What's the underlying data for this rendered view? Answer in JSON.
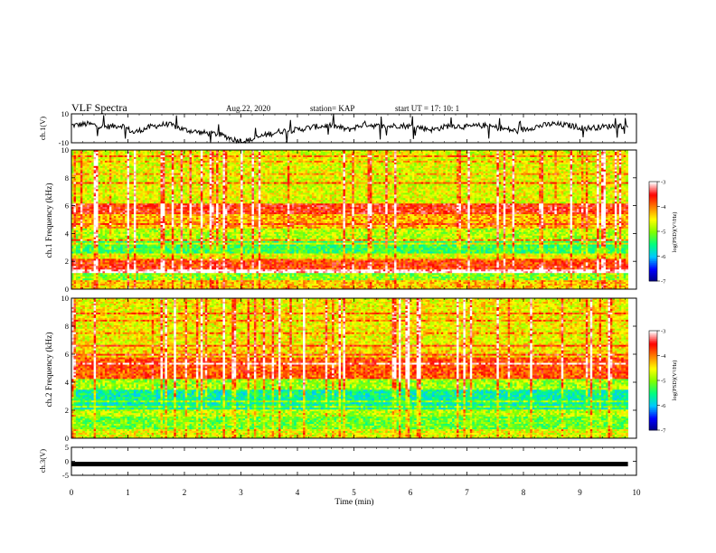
{
  "header": {
    "title": "VLF Spectra",
    "date": "Aug.22, 2020",
    "station": "station= KAP",
    "start": "start  UT =   17: 10: 1"
  },
  "chart_data": [
    {
      "type": "line",
      "panel": "ch1-waveform",
      "ylabel": "ch.1(V)",
      "ylim": [
        -10,
        10
      ],
      "yticks": [
        "10",
        "-10"
      ],
      "x_minutes": [
        0,
        0.3,
        0.6,
        0.9,
        1.1,
        1.4,
        1.7,
        2.0,
        2.3,
        2.6,
        2.9,
        3.1,
        3.4,
        3.7,
        4.0,
        4.3,
        4.6,
        4.9,
        5.2,
        5.5,
        5.8,
        6.1,
        6.4,
        6.7,
        7.0,
        7.3,
        7.6,
        7.9,
        8.2,
        8.5,
        8.8,
        9.1,
        9.4,
        9.7,
        9.85
      ],
      "y_volts": [
        2,
        3,
        1,
        2,
        -3,
        1,
        3,
        -1,
        -3,
        -4,
        -8,
        -9,
        -5,
        -2,
        -1,
        1,
        2,
        -1,
        3,
        1,
        2,
        1,
        -1,
        2,
        1,
        2,
        0,
        -2,
        1,
        3,
        2,
        0,
        1,
        2,
        1
      ]
    },
    {
      "type": "heatmap",
      "panel": "ch1-spectrogram",
      "ylabel": "ch.1 Frequency (kHz)",
      "ylim": [
        0,
        10
      ],
      "yticks": [
        "0",
        "2",
        "4",
        "6",
        "8",
        "10"
      ],
      "colorbar": {
        "label": "log(PSD)(V²/Hz)",
        "range": [
          -7,
          -3
        ],
        "ticks": [
          "-3",
          "-4",
          "-5",
          "-6",
          "-7"
        ]
      },
      "band_levels": [
        {
          "f_khz": [
            0,
            0.6
          ],
          "level": -4.3
        },
        {
          "f_khz": [
            0.6,
            1.2
          ],
          "level": -5.0
        },
        {
          "f_khz": [
            1.2,
            2.0
          ],
          "level": -3.7
        },
        {
          "f_khz": [
            2.0,
            2.6
          ],
          "level": -4.6
        },
        {
          "f_khz": [
            2.6,
            3.4
          ],
          "level": -5.3
        },
        {
          "f_khz": [
            3.4,
            4.3
          ],
          "level": -4.8
        },
        {
          "f_khz": [
            4.3,
            5.4
          ],
          "level": -4.2
        },
        {
          "f_khz": [
            5.4,
            6.2
          ],
          "level": -3.6
        },
        {
          "f_khz": [
            6.2,
            10
          ],
          "level": -4.6
        }
      ]
    },
    {
      "type": "heatmap",
      "panel": "ch2-spectrogram",
      "ylabel": "ch.2 Frequency (kHz)",
      "ylim": [
        0,
        10
      ],
      "yticks": [
        "0",
        "2",
        "4",
        "6",
        "8",
        "10"
      ],
      "colorbar": {
        "label": "log(PSD)(V²/Hz)",
        "range": [
          -7,
          -3
        ],
        "ticks": [
          "-3",
          "-4",
          "-5",
          "-6",
          "-7"
        ]
      },
      "band_levels": [
        {
          "f_khz": [
            0,
            0.6
          ],
          "level": -4.6
        },
        {
          "f_khz": [
            0.6,
            1.6
          ],
          "level": -5.1
        },
        {
          "f_khz": [
            1.6,
            2.1
          ],
          "level": -4.8
        },
        {
          "f_khz": [
            2.1,
            3.4
          ],
          "level": -5.6
        },
        {
          "f_khz": [
            3.4,
            4.2
          ],
          "level": -4.9
        },
        {
          "f_khz": [
            4.2,
            5.8
          ],
          "level": -3.8
        },
        {
          "f_khz": [
            5.8,
            6.6
          ],
          "level": -4.4
        },
        {
          "f_khz": [
            6.6,
            10
          ],
          "level": -4.5
        }
      ]
    },
    {
      "type": "line",
      "panel": "ch3-signal",
      "ylabel": "ch.3(V)",
      "ylim": [
        -5,
        5
      ],
      "yticks": [
        "5",
        "0",
        "-5"
      ],
      "x_minutes": [
        0,
        9.85
      ],
      "y_volts": [
        -1,
        -1
      ]
    }
  ],
  "xaxis": {
    "label": "Time (min)",
    "range": [
      0,
      10
    ],
    "ticks": [
      "0",
      "1",
      "2",
      "3",
      "4",
      "5",
      "6",
      "7",
      "8",
      "9",
      "10"
    ]
  },
  "colors": {
    "colormap": [
      "#000080",
      "#0000ff",
      "#00c8ff",
      "#00ff80",
      "#80ff00",
      "#ffff00",
      "#ff8000",
      "#ff0000",
      "#ffffff"
    ]
  }
}
